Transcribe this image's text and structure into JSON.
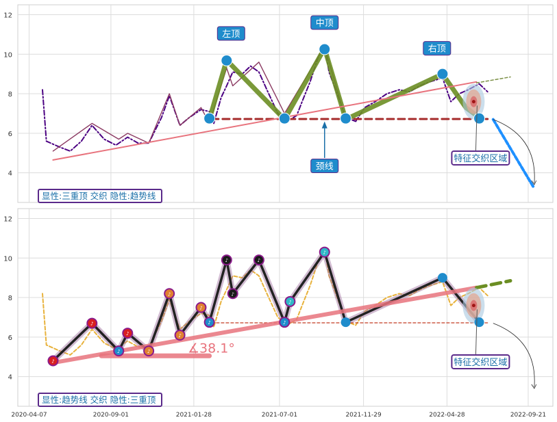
{
  "chart_data": [
    {
      "type": "line",
      "ylim": [
        2.5,
        12.5
      ],
      "yticks": [
        4,
        6,
        8,
        10,
        12
      ],
      "grid": true,
      "series": [
        {
          "style": "price-dashdot",
          "color": "#4b0082",
          "x": [
            "2020-05-01",
            "2020-05-08",
            "2020-06-01",
            "2020-06-20",
            "2020-07-10",
            "2020-07-29",
            "2020-08-20",
            "2020-09-10",
            "2020-10-01",
            "2020-10-20",
            "2020-11-08",
            "2020-12-01",
            "2020-12-15",
            "2021-01-03",
            "2021-01-20",
            "2021-02-10",
            "2021-02-25",
            "2021-03-05",
            "2021-03-18",
            "2021-03-28",
            "2021-04-08",
            "2021-04-25",
            "2021-05-10",
            "2021-05-25",
            "2021-06-10",
            "2021-06-28",
            "2021-07-15",
            "2021-08-01",
            "2021-08-12",
            "2021-08-25",
            "2021-09-08",
            "2021-09-20",
            "2021-09-28",
            "2021-10-10",
            "2021-10-28",
            "2021-11-15",
            "2021-12-01",
            "2021-12-20",
            "2022-01-10",
            "2022-02-01",
            "2022-02-20",
            "2022-03-10",
            "2022-03-28",
            "2022-04-20",
            "2022-05-05",
            "2022-05-20",
            "2022-06-05",
            "2022-06-25",
            "2022-07-10"
          ],
          "y": [
            8.2,
            5.6,
            5.3,
            5.1,
            5.6,
            6.4,
            5.7,
            5.4,
            5.8,
            5.5,
            5.5,
            6.8,
            7.9,
            6.4,
            6.8,
            7.2,
            7.1,
            6.5,
            7.8,
            8.4,
            9.1,
            9.0,
            9.4,
            9.1,
            8.1,
            7.0,
            6.6,
            6.9,
            7.7,
            8.6,
            9.8,
            10.5,
            9.1,
            8.2,
            6.8,
            6.6,
            7.3,
            7.6,
            8.0,
            8.2,
            8.1,
            8.4,
            8.6,
            8.8,
            7.6,
            8.0,
            8.2,
            8.5,
            8.1
          ]
        },
        {
          "style": "pattern-thin",
          "color": "#8b3a62",
          "x": [
            "2020-05-20",
            "2020-07-29",
            "2020-09-15",
            "2020-10-01",
            "2020-11-08",
            "2020-12-15",
            "2021-01-03",
            "2021-02-10",
            "2021-02-25",
            "2021-03-28",
            "2021-04-08",
            "2021-05-25",
            "2021-07-10",
            "2021-09-20",
            "2021-10-28"
          ],
          "y": [
            5.1,
            6.5,
            5.7,
            6.0,
            5.5,
            8.0,
            6.4,
            7.3,
            6.5,
            9.3,
            8.4,
            9.6,
            7.0,
            10.4,
            6.7
          ]
        },
        {
          "style": "pattern-thick",
          "color": "#6b8e23",
          "x": [
            "2021-02-25",
            "2021-03-28",
            "2021-07-10",
            "2021-09-20",
            "2021-10-28",
            "2022-04-20",
            "2022-06-01",
            "2022-06-25"
          ],
          "y": [
            6.7,
            9.7,
            6.7,
            10.3,
            6.7,
            9.0,
            7.3,
            6.8
          ]
        },
        {
          "style": "neckline",
          "color": "#a52a2a",
          "x": [
            "2021-03-01",
            "2022-07-10"
          ],
          "y": [
            6.72,
            6.72
          ]
        },
        {
          "style": "trendline",
          "color": "#e8737d",
          "x": [
            "2020-05-20",
            "2022-06-20"
          ],
          "y": [
            4.65,
            8.6
          ]
        },
        {
          "style": "trend-extension",
          "color": "#7b8f45",
          "x": [
            "2022-06-20",
            "2022-08-20"
          ],
          "y": [
            8.55,
            8.85
          ]
        },
        {
          "style": "projection",
          "color": "#1e90ff",
          "x": [
            "2022-07-20",
            "2022-09-30"
          ],
          "y": [
            6.7,
            3.3
          ]
        }
      ],
      "pivots": [
        {
          "x": "2021-02-25",
          "y": 6.75
        },
        {
          "x": "2021-03-28",
          "y": 9.68
        },
        {
          "x": "2021-07-10",
          "y": 6.75
        },
        {
          "x": "2021-09-20",
          "y": 10.25
        },
        {
          "x": "2021-10-28",
          "y": 6.75
        },
        {
          "x": "2022-04-20",
          "y": 9.0
        },
        {
          "x": "2022-06-25",
          "y": 6.75
        }
      ],
      "annotations": [
        {
          "text": "左顶",
          "x": "2021-04-05",
          "y": 11.05
        },
        {
          "text": "中顶",
          "x": "2021-09-20",
          "y": 11.6
        },
        {
          "text": "右顶",
          "x": "2022-04-10",
          "y": 10.3
        },
        {
          "text": "颈线",
          "x": "2021-09-20",
          "y": 4.35
        },
        {
          "text": "特征交织区域",
          "x": "2022-06-15",
          "y": 4.75
        }
      ],
      "legend_text": "显性:三重顶 交织 隐性:趋势线"
    },
    {
      "type": "line",
      "ylim": [
        2.5,
        12.5
      ],
      "yticks": [
        4,
        6,
        8,
        10,
        12
      ],
      "xticks": [
        "2020-04-07",
        "2020-09-01",
        "2021-01-28",
        "2021-07-01",
        "2021-11-29",
        "2022-04-28",
        "2022-09-21"
      ],
      "grid": true,
      "series": [
        {
          "style": "price-dashed",
          "color": "#e8b23c",
          "x": [
            "2020-05-01",
            "2020-05-08",
            "2020-06-01",
            "2020-06-20",
            "2020-07-10",
            "2020-07-29",
            "2020-08-20",
            "2020-09-10",
            "2020-10-01",
            "2020-10-20",
            "2020-11-08",
            "2020-12-01",
            "2020-12-15",
            "2021-01-03",
            "2021-01-20",
            "2021-02-10",
            "2021-02-25",
            "2021-03-05",
            "2021-03-18",
            "2021-03-28",
            "2021-04-08",
            "2021-04-25",
            "2021-05-10",
            "2021-05-25",
            "2021-06-10",
            "2021-06-28",
            "2021-07-15",
            "2021-08-01",
            "2021-08-12",
            "2021-08-25",
            "2021-09-08",
            "2021-09-20",
            "2021-09-28",
            "2021-10-10",
            "2021-10-28",
            "2021-11-15",
            "2021-12-01",
            "2021-12-20",
            "2022-01-10",
            "2022-02-01",
            "2022-02-20",
            "2022-03-10",
            "2022-03-28",
            "2022-04-20",
            "2022-05-05",
            "2022-05-20",
            "2022-06-05",
            "2022-06-25",
            "2022-07-10"
          ],
          "y": [
            8.2,
            5.6,
            5.3,
            5.1,
            5.6,
            6.4,
            5.7,
            5.4,
            5.8,
            5.5,
            5.5,
            6.8,
            7.9,
            6.4,
            6.8,
            7.2,
            7.1,
            6.5,
            7.8,
            8.4,
            9.1,
            9.0,
            9.4,
            9.1,
            8.1,
            7.0,
            6.6,
            6.9,
            7.7,
            8.6,
            9.8,
            10.5,
            9.1,
            8.2,
            6.8,
            6.6,
            7.3,
            7.6,
            8.0,
            8.2,
            8.1,
            8.4,
            8.6,
            8.8,
            7.6,
            8.0,
            8.2,
            8.5,
            8.1
          ]
        },
        {
          "style": "zigzag-black",
          "color": "#222222",
          "x": [
            "2020-05-20",
            "2020-07-29",
            "2020-09-15",
            "2020-10-01",
            "2020-11-08",
            "2020-12-15",
            "2021-01-03",
            "2021-02-10",
            "2021-02-25",
            "2021-03-28",
            "2021-04-08",
            "2021-05-25",
            "2021-07-10",
            "2021-07-20",
            "2021-09-20",
            "2021-10-28",
            "2022-04-20",
            "2022-06-25"
          ],
          "y": [
            4.8,
            6.7,
            5.3,
            6.2,
            5.3,
            8.2,
            6.1,
            7.5,
            6.75,
            9.9,
            8.2,
            9.9,
            6.75,
            7.8,
            10.3,
            6.75,
            9.0,
            6.75
          ]
        },
        {
          "style": "neckline",
          "color": "#c23b22",
          "x": [
            "2021-03-01",
            "2022-07-10"
          ],
          "y": [
            6.72,
            6.72
          ]
        },
        {
          "style": "trendline",
          "color": "#e8737d",
          "x": [
            "2020-05-20",
            "2022-06-20"
          ],
          "y": [
            4.7,
            8.5
          ]
        },
        {
          "style": "trend-extension",
          "color": "#6b8e23",
          "x": [
            "2022-06-20",
            "2022-08-20"
          ],
          "y": [
            8.5,
            8.85
          ]
        },
        {
          "style": "support",
          "color": "#e8737d",
          "x": [
            "2020-08-15",
            "2021-02-25"
          ],
          "y": [
            5.05,
            5.05
          ]
        }
      ],
      "angle_label": "∡38.1°",
      "annotations": [
        {
          "text": "特征交织区域",
          "x": "2022-06-15",
          "y": 4.75
        }
      ],
      "legend_text": "显性:趋势线 交织 隐性:三重顶"
    }
  ]
}
